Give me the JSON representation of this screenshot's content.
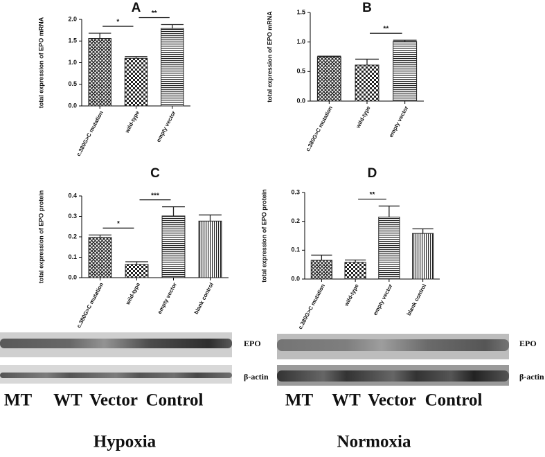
{
  "chart_data": [
    {
      "type": "bar",
      "title": "A",
      "y_label": "total expression of EPO mRNA",
      "categories": [
        "c.380G>C mutation",
        "wild-type",
        "empty vector"
      ],
      "values": [
        1.56,
        1.1,
        1.79
      ],
      "errors": [
        0.12,
        0.04,
        0.09
      ],
      "patterns": [
        "crosshatch",
        "checker",
        "horizontal"
      ],
      "color": "#222222",
      "ylim": [
        0,
        2
      ],
      "yticks": [
        {
          "value": 0,
          "label": "0.0"
        },
        0.5,
        {
          "value": 1,
          "label": "1.0"
        },
        1.5,
        {
          "value": 2,
          "label": "2.0"
        }
      ],
      "annotations": [
        {
          "label": "*",
          "between": [
            0,
            1
          ]
        },
        {
          "label": "**",
          "between": [
            1,
            2
          ]
        }
      ]
    },
    {
      "type": "bar",
      "title": "B",
      "y_label": "total expression of EPO mRNA",
      "categories": [
        "c.380G>C mutation",
        "wild-type",
        "empty vector"
      ],
      "values": [
        0.75,
        0.61,
        1.01
      ],
      "errors": [
        0.01,
        0.1,
        0.02
      ],
      "patterns": [
        "crosshatch",
        "checker",
        "horizontal"
      ],
      "color": "#222222",
      "ylim": [
        0,
        1.5
      ],
      "yticks": [
        {
          "value": 0,
          "label": "0.0"
        },
        0.5,
        {
          "value": 1,
          "label": "1.0"
        },
        1.5
      ],
      "annotations": [
        {
          "label": "**",
          "between": [
            1,
            2
          ]
        }
      ]
    },
    {
      "type": "bar",
      "title": "C",
      "y_label": "total expression of EPO protein",
      "categories": [
        "c.380G>C mutation",
        "wild-type",
        "empty vector",
        "blank control"
      ],
      "values": [
        0.197,
        0.065,
        0.302,
        0.277
      ],
      "errors": [
        0.012,
        0.013,
        0.045,
        0.03
      ],
      "patterns": [
        "crosshatch",
        "checker",
        "horizontal",
        "vertical"
      ],
      "color": "#222222",
      "ylim": [
        0,
        0.4
      ],
      "yticks": [
        {
          "value": 0,
          "label": "0.0"
        },
        0.1,
        0.2,
        0.3,
        0.4
      ],
      "annotations": [
        {
          "label": "*",
          "between": [
            0,
            1
          ]
        },
        {
          "label": "***",
          "between": [
            1,
            2
          ]
        }
      ]
    },
    {
      "type": "bar",
      "title": "D",
      "y_label": "total expression of EPO protein",
      "categories": [
        "c.380G>C mutation",
        "wild-type",
        "empty vector",
        "blank control"
      ],
      "values": [
        0.065,
        0.058,
        0.215,
        0.158
      ],
      "errors": [
        0.018,
        0.008,
        0.038,
        0.016
      ],
      "patterns": [
        "crosshatch",
        "checker",
        "horizontal",
        "vertical"
      ],
      "color": "#222222",
      "ylim": [
        0,
        0.3
      ],
      "yticks": [
        {
          "value": 0,
          "label": "0.0"
        },
        0.1,
        0.2,
        0.3
      ],
      "annotations": [
        {
          "label": "**",
          "between": [
            1,
            2
          ]
        }
      ]
    }
  ],
  "blots": [
    {
      "protein_labels": [
        "EPO",
        "β-actin"
      ],
      "lanes": [
        "MT",
        "WT",
        "Vector",
        "Control"
      ],
      "condition": "Hypoxia"
    },
    {
      "protein_labels": [
        "EPO",
        "β-actin"
      ],
      "lanes": [
        "MT",
        "WT",
        "Vector",
        "Control"
      ],
      "condition": "Normoxia"
    }
  ]
}
